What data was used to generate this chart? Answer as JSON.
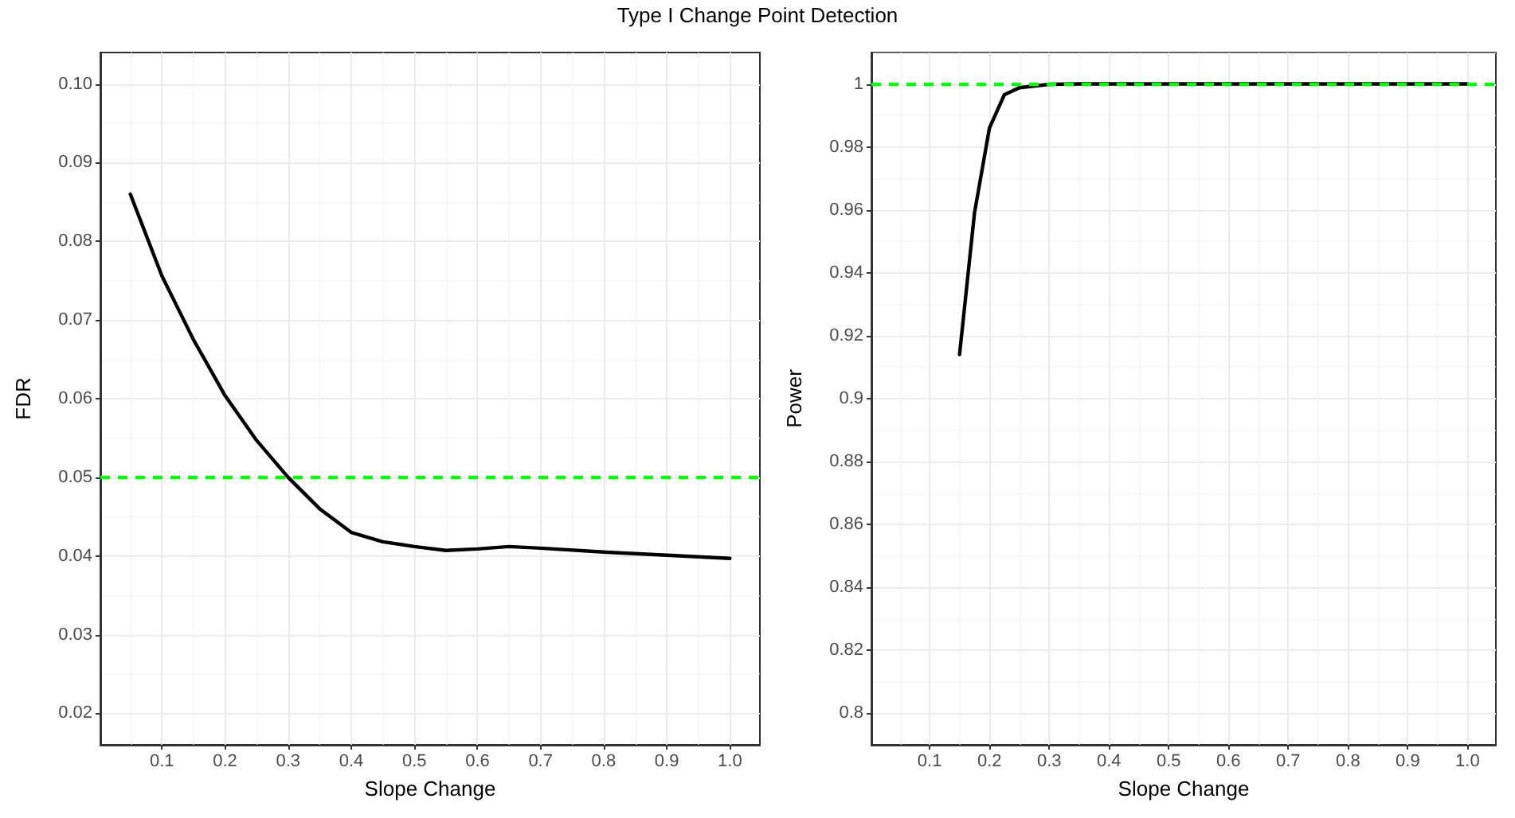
{
  "chart_data": [
    {
      "type": "line",
      "title": "Type I Change Point Detection",
      "xlabel": "Slope Change",
      "ylabel": "FDR",
      "x": [
        0.05,
        0.1,
        0.15,
        0.2,
        0.25,
        0.3,
        0.35,
        0.4,
        0.45,
        0.5,
        0.55,
        0.6,
        0.65,
        0.7,
        0.8,
        0.9,
        1.0
      ],
      "series": [
        {
          "color": "#000000",
          "values": [
            0.086,
            0.0756,
            0.0675,
            0.0604,
            0.0547,
            0.05,
            0.046,
            0.043,
            0.0418,
            0.0412,
            0.0407,
            0.0409,
            0.0412,
            0.041,
            0.0405,
            0.0401,
            0.0397
          ]
        }
      ],
      "xlim": [
        0.0025,
        1.0475
      ],
      "xticks": [
        0.1,
        0.2,
        0.3,
        0.4,
        0.5,
        0.6,
        0.7,
        0.8,
        0.9,
        {
          "value": 1.0,
          "label": "1.0"
        }
      ],
      "ylim": [
        0.016,
        0.104
      ],
      "yticks": [
        {
          "value": 0.02,
          "label": "0.02"
        },
        {
          "value": 0.03,
          "label": "0.03"
        },
        {
          "value": 0.04,
          "label": "0.04"
        },
        {
          "value": 0.05,
          "label": "0.05"
        },
        {
          "value": 0.06,
          "label": "0.06"
        },
        {
          "value": 0.07,
          "label": "0.07"
        },
        {
          "value": 0.08,
          "label": "0.08"
        },
        {
          "value": 0.09,
          "label": "0.09"
        },
        {
          "value": 0.1,
          "label": "0.10"
        }
      ],
      "ref_lines": [
        {
          "axis": "y",
          "value": 0.05,
          "color": "#00ff00",
          "line_style": "dashed"
        }
      ],
      "grid": true,
      "marker": "none",
      "line_style": "solid"
    },
    {
      "type": "line",
      "xlabel": "Slope Change",
      "ylabel": "Power",
      "x": [
        0.15,
        0.175,
        0.2,
        0.225,
        0.25,
        0.3,
        0.35,
        0.4,
        0.5,
        0.6,
        0.7,
        0.8,
        0.9,
        1.0
      ],
      "series": [
        {
          "color": "#000000",
          "values": [
            0.914,
            0.959,
            0.986,
            0.9966,
            0.9988,
            0.9999,
            1,
            1,
            1,
            1,
            1,
            1,
            1,
            1
          ]
        }
      ],
      "xlim": [
        0.0025,
        1.0475
      ],
      "xticks": [
        0.1,
        0.2,
        0.3,
        0.4,
        0.5,
        0.6,
        0.7,
        0.8,
        0.9,
        {
          "value": 1.0,
          "label": "1.0"
        }
      ],
      "ylim": [
        0.79,
        1.01
      ],
      "yticks": [
        0.8,
        0.82,
        0.84,
        0.86,
        0.88,
        0.9,
        0.92,
        0.94,
        0.96,
        0.98,
        1
      ],
      "ref_lines": [
        {
          "axis": "y",
          "value": 1,
          "color": "#00ff00",
          "line_style": "dashed"
        }
      ],
      "grid": true,
      "marker": "none",
      "line_style": "solid"
    }
  ]
}
